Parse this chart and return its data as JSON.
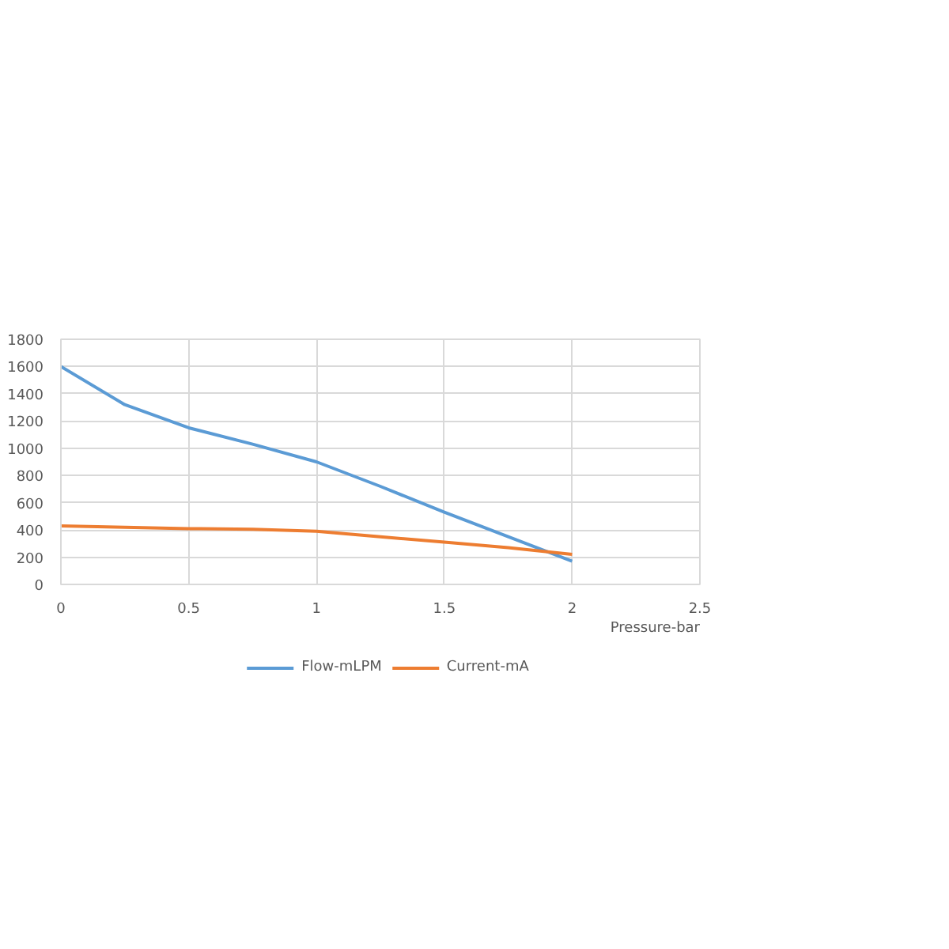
{
  "chart_data": {
    "type": "line",
    "xlabel": "Pressure-bar",
    "x": [
      0,
      0.25,
      0.5,
      0.75,
      1,
      1.25,
      1.5,
      1.75,
      2
    ],
    "series": [
      {
        "name": "Flow-mLPM",
        "color": "#5b9bd5",
        "values": [
          1600,
          1320,
          1150,
          1030,
          900,
          720,
          530,
          350,
          170
        ]
      },
      {
        "name": "Current-mA",
        "color": "#ed7d31",
        "values": [
          430,
          420,
          410,
          405,
          390,
          350,
          310,
          270,
          220
        ]
      }
    ],
    "xlim": [
      0,
      2.5
    ],
    "xticks": [
      0,
      0.5,
      1,
      1.5,
      2,
      2.5
    ],
    "ylim": [
      0,
      1800
    ],
    "yticks": [
      0,
      200,
      400,
      600,
      800,
      1000,
      1200,
      1400,
      1600,
      1800
    ],
    "grid": true,
    "legend": "bottom",
    "marker": "none",
    "line_style": "solid"
  }
}
